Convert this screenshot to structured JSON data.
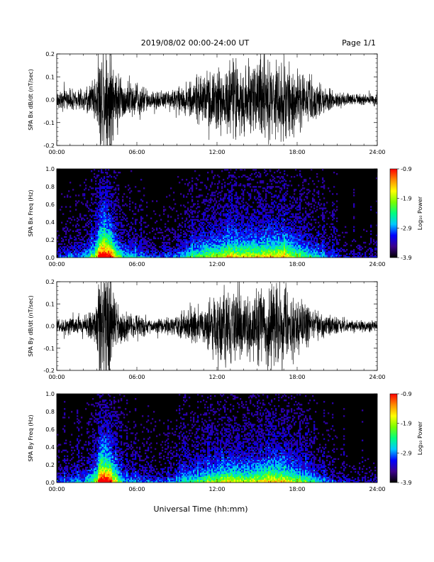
{
  "header": {
    "title": "2019/08/02  00:00-24:00 UT",
    "page": "Page 1/1"
  },
  "xaxis_label": "Universal Time (hh:mm)",
  "colorbar": {
    "label": "Log₁₀ Power",
    "range": [
      -3.9,
      -0.9
    ],
    "ticks": [
      "-0.9",
      "-1.9",
      "-2.9",
      "-3.9"
    ],
    "colors": [
      "#000000",
      "#3c008c",
      "#0000ff",
      "#00c8ff",
      "#00ff7f",
      "#78ff00",
      "#ffff00",
      "#ff8c00",
      "#ff0000"
    ]
  },
  "chart_data": [
    {
      "type": "line",
      "ylabel": "SPA Bx dB/dt (nT/sec)",
      "xlim": [
        0,
        24
      ],
      "ylim": [
        -0.2,
        0.2
      ],
      "yticks": [
        "0.2",
        "0.1",
        "0.0",
        "-0.1",
        "-0.2"
      ],
      "xticks": [
        "00:00",
        "06:00",
        "12:00",
        "18:00",
        "24:00"
      ],
      "envelope": {
        "x": [
          0,
          1,
          2,
          2.5,
          3,
          3.2,
          3.5,
          4,
          4.3,
          5,
          6,
          7,
          8,
          9,
          10,
          11,
          12,
          13,
          14,
          15,
          16,
          17,
          18,
          19,
          20,
          21,
          22,
          23,
          24
        ],
        "amplitude": [
          0.04,
          0.06,
          0.05,
          0.09,
          0.12,
          0.3,
          0.3,
          0.3,
          0.2,
          0.1,
          0.09,
          0.05,
          0.05,
          0.06,
          0.09,
          0.14,
          0.16,
          0.2,
          0.2,
          0.2,
          0.22,
          0.2,
          0.16,
          0.12,
          0.07,
          0.04,
          0.03,
          0.03,
          0.03
        ]
      }
    },
    {
      "type": "heatmap",
      "ylabel": "SPA Bx Freq (Hz)",
      "xlim": [
        0,
        24
      ],
      "ylim": [
        0.0,
        1.0
      ],
      "yticks": [
        "1.0",
        "0.8",
        "0.6",
        "0.4",
        "0.2",
        "0.0"
      ],
      "xticks": [
        "00:00",
        "06:00",
        "12:00",
        "18:00",
        "24:00"
      ],
      "value_range": [
        -3.9,
        -0.9
      ],
      "activity": {
        "x": [
          0,
          1,
          2,
          2.5,
          3,
          3.2,
          3.5,
          4,
          4.3,
          5,
          6,
          7,
          8,
          9,
          10,
          11,
          12,
          13,
          14,
          15,
          16,
          17,
          18,
          19,
          20,
          21,
          22,
          23,
          24
        ],
        "level": [
          0.2,
          0.3,
          0.3,
          0.45,
          0.6,
          1.0,
          1.0,
          0.95,
          0.7,
          0.4,
          0.35,
          0.25,
          0.25,
          0.3,
          0.45,
          0.55,
          0.6,
          0.65,
          0.65,
          0.65,
          0.7,
          0.7,
          0.55,
          0.45,
          0.3,
          0.2,
          0.15,
          0.15,
          0.15
        ]
      }
    },
    {
      "type": "line",
      "ylabel": "SPA By dB/dt (nT/sec)",
      "xlim": [
        0,
        24
      ],
      "ylim": [
        -0.2,
        0.2
      ],
      "yticks": [
        "0.2",
        "0.1",
        "0.0",
        "-0.1",
        "-0.2"
      ],
      "xticks": [
        "00:00",
        "06:00",
        "12:00",
        "18:00",
        "24:00"
      ],
      "envelope": {
        "x": [
          0,
          1,
          2,
          2.5,
          3,
          3.2,
          3.5,
          4,
          4.3,
          5,
          6,
          7,
          8,
          9,
          10,
          11,
          12,
          13,
          14,
          15,
          16,
          17,
          18,
          19,
          20,
          21,
          22,
          23,
          24
        ],
        "amplitude": [
          0.03,
          0.05,
          0.05,
          0.08,
          0.12,
          0.3,
          0.3,
          0.3,
          0.15,
          0.09,
          0.06,
          0.04,
          0.04,
          0.06,
          0.08,
          0.1,
          0.18,
          0.2,
          0.16,
          0.22,
          0.22,
          0.2,
          0.15,
          0.1,
          0.06,
          0.04,
          0.03,
          0.03,
          0.03
        ]
      }
    },
    {
      "type": "heatmap",
      "ylabel": "SPA By Freq (Hz)",
      "xlim": [
        0,
        24
      ],
      "ylim": [
        0.0,
        1.0
      ],
      "yticks": [
        "1.0",
        "0.8",
        "0.6",
        "0.4",
        "0.2",
        "0.0"
      ],
      "xticks": [
        "00:00",
        "06:00",
        "12:00",
        "18:00",
        "24:00"
      ],
      "value_range": [
        -3.9,
        -0.9
      ],
      "activity": {
        "x": [
          0,
          1,
          2,
          2.5,
          3,
          3.2,
          3.5,
          4,
          4.3,
          5,
          6,
          7,
          8,
          9,
          10,
          11,
          12,
          13,
          14,
          15,
          16,
          17,
          18,
          19,
          20,
          21,
          22,
          23,
          24
        ],
        "level": [
          0.2,
          0.3,
          0.3,
          0.45,
          0.6,
          1.0,
          1.0,
          0.95,
          0.65,
          0.35,
          0.3,
          0.25,
          0.25,
          0.3,
          0.45,
          0.5,
          0.6,
          0.65,
          0.6,
          0.65,
          0.7,
          0.7,
          0.55,
          0.45,
          0.3,
          0.2,
          0.15,
          0.15,
          0.15
        ]
      }
    }
  ]
}
